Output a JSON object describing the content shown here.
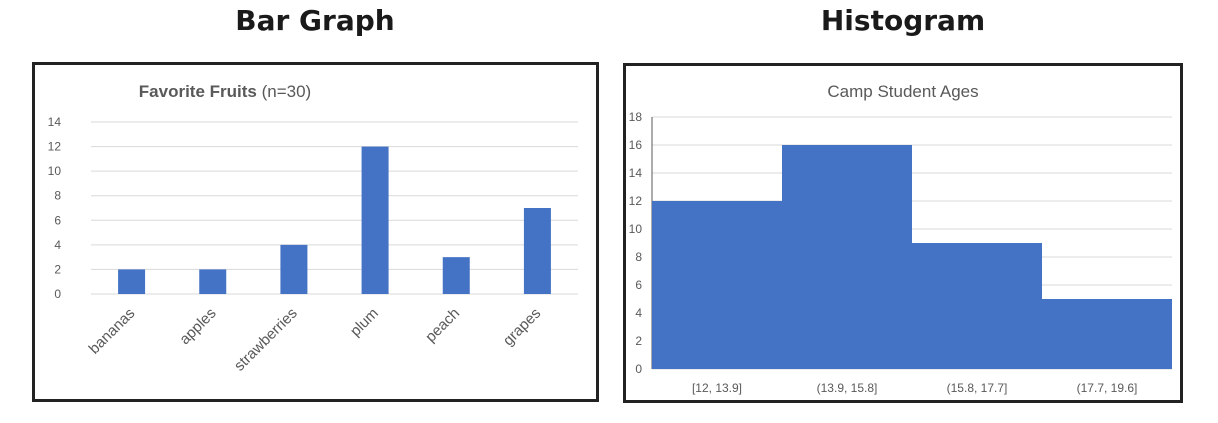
{
  "headings": {
    "left": "Bar Graph",
    "right": "Histogram"
  },
  "colors": {
    "bar": "#4472C4",
    "grid": "#d9d9d9",
    "text": "#595959",
    "border": "#222222"
  },
  "chart_data": [
    {
      "type": "bar",
      "title_bold": "Favorite Fruits",
      "title_rest": " (n=30)",
      "categories": [
        "bananas",
        "apples",
        "strawberries",
        "plum",
        "peach",
        "grapes"
      ],
      "values": [
        2,
        2,
        4,
        12,
        3,
        7
      ],
      "ylim": [
        0,
        14
      ],
      "yticks": [
        0,
        2,
        4,
        6,
        8,
        10,
        12,
        14
      ],
      "grid": true,
      "legend": "none"
    },
    {
      "type": "bar",
      "title": "Camp Student Ages",
      "categories": [
        "[12, 13.9]",
        "(13.9, 15.8]",
        "(15.8, 17.7]",
        "(17.7, 19.6]"
      ],
      "values": [
        12,
        16,
        9,
        5
      ],
      "ylim": [
        0,
        18
      ],
      "yticks": [
        0,
        2,
        4,
        6,
        8,
        10,
        12,
        14,
        16,
        18
      ],
      "grid": true,
      "legend": "none"
    }
  ]
}
